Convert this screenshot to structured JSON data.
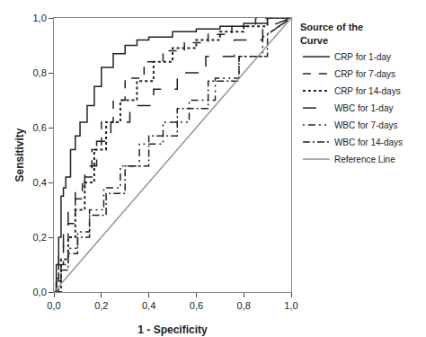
{
  "chart_data": {
    "type": "line",
    "xlabel": "1 - Specificity",
    "ylabel": "Sensitivity",
    "xlim": [
      0,
      1
    ],
    "ylim": [
      0,
      1
    ],
    "xticks": [
      {
        "value": 0.0,
        "label": "0,0"
      },
      {
        "value": 0.2,
        "label": "0,2"
      },
      {
        "value": 0.4,
        "label": "0,4"
      },
      {
        "value": 0.6,
        "label": "0,6"
      },
      {
        "value": 0.8,
        "label": "0,8"
      },
      {
        "value": 1.0,
        "label": "1,0"
      }
    ],
    "yticks": [
      {
        "value": 0.0,
        "label": "0,0"
      },
      {
        "value": 0.2,
        "label": "0,2"
      },
      {
        "value": 0.4,
        "label": "0,4"
      },
      {
        "value": 0.6,
        "label": "0,6"
      },
      {
        "value": 0.8,
        "label": "0,8"
      },
      {
        "value": 1.0,
        "label": "1,0"
      }
    ],
    "grid": false,
    "legend": "right",
    "legend_title": "Source of the\nCurve",
    "series": [
      {
        "name": "CRP for 1-day",
        "color": "#222222",
        "line_style": "solid",
        "x": [
          0,
          0.01,
          0.01,
          0.02,
          0.02,
          0.03,
          0.03,
          0.04,
          0.04,
          0.05,
          0.05,
          0.07,
          0.07,
          0.09,
          0.09,
          0.11,
          0.11,
          0.14,
          0.14,
          0.17,
          0.17,
          0.2,
          0.2,
          0.25,
          0.25,
          0.3,
          0.3,
          0.35,
          0.35,
          0.4,
          0.4,
          0.5,
          0.5,
          0.6,
          0.6,
          0.7,
          0.7,
          0.8,
          0.8,
          0.9,
          0.9,
          1.0
        ],
        "values": [
          0,
          0,
          0.1,
          0.1,
          0.2,
          0.2,
          0.35,
          0.35,
          0.38,
          0.38,
          0.42,
          0.42,
          0.52,
          0.52,
          0.57,
          0.57,
          0.62,
          0.62,
          0.68,
          0.68,
          0.75,
          0.75,
          0.82,
          0.82,
          0.87,
          0.87,
          0.9,
          0.9,
          0.92,
          0.92,
          0.93,
          0.93,
          0.95,
          0.95,
          0.96,
          0.96,
          0.97,
          0.97,
          0.98,
          0.98,
          1.0,
          1.0
        ]
      },
      {
        "name": "CRP for 7-days",
        "color": "#222222",
        "line_style": "dashed",
        "x": [
          0,
          0.02,
          0.02,
          0.04,
          0.04,
          0.06,
          0.06,
          0.09,
          0.09,
          0.12,
          0.12,
          0.16,
          0.16,
          0.2,
          0.2,
          0.25,
          0.25,
          0.3,
          0.3,
          0.38,
          0.38,
          0.46,
          0.46,
          0.55,
          0.55,
          0.65,
          0.65,
          0.75,
          0.75,
          0.85,
          0.85,
          1.0
        ],
        "values": [
          0,
          0,
          0.1,
          0.1,
          0.17,
          0.17,
          0.25,
          0.25,
          0.34,
          0.34,
          0.42,
          0.42,
          0.52,
          0.52,
          0.62,
          0.62,
          0.7,
          0.7,
          0.78,
          0.78,
          0.84,
          0.84,
          0.88,
          0.88,
          0.91,
          0.91,
          0.94,
          0.94,
          0.97,
          0.97,
          1.0,
          1.0
        ]
      },
      {
        "name": "CRP for 14-days",
        "color": "#222222",
        "line_style": "dotted",
        "x": [
          0,
          0.03,
          0.03,
          0.06,
          0.06,
          0.09,
          0.09,
          0.13,
          0.13,
          0.17,
          0.17,
          0.22,
          0.22,
          0.28,
          0.28,
          0.35,
          0.35,
          0.42,
          0.42,
          0.5,
          0.5,
          0.6,
          0.6,
          0.7,
          0.7,
          0.8,
          0.8,
          0.9,
          0.9,
          1.0
        ],
        "values": [
          0,
          0,
          0.12,
          0.12,
          0.2,
          0.2,
          0.3,
          0.3,
          0.4,
          0.4,
          0.52,
          0.52,
          0.62,
          0.62,
          0.7,
          0.7,
          0.77,
          0.77,
          0.84,
          0.84,
          0.89,
          0.89,
          0.92,
          0.92,
          0.95,
          0.95,
          0.97,
          0.97,
          1.0,
          1.0
        ]
      },
      {
        "name": "WBC for 1-day",
        "color": "#222222",
        "line_style": "longdash",
        "x": [
          0,
          0.01,
          0.01,
          0.02,
          0.02,
          0.04,
          0.04,
          0.06,
          0.06,
          0.09,
          0.09,
          0.13,
          0.13,
          0.18,
          0.18,
          0.24,
          0.24,
          0.32,
          0.32,
          0.42,
          0.42,
          0.52,
          0.52,
          0.64,
          0.64,
          0.76,
          0.76,
          0.88,
          0.88,
          1.0
        ],
        "values": [
          0,
          0,
          0.08,
          0.08,
          0.16,
          0.16,
          0.22,
          0.22,
          0.3,
          0.3,
          0.38,
          0.38,
          0.46,
          0.46,
          0.55,
          0.55,
          0.62,
          0.62,
          0.68,
          0.68,
          0.74,
          0.74,
          0.8,
          0.8,
          0.86,
          0.86,
          0.92,
          0.92,
          0.96,
          1.0
        ]
      },
      {
        "name": "WBC for 7-days",
        "color": "#222222",
        "line_style": "dashdotdot",
        "x": [
          0,
          0.01,
          0.01,
          0.03,
          0.03,
          0.06,
          0.06,
          0.1,
          0.1,
          0.15,
          0.15,
          0.21,
          0.21,
          0.28,
          0.28,
          0.36,
          0.36,
          0.46,
          0.46,
          0.57,
          0.57,
          0.68,
          0.68,
          0.78,
          0.78,
          0.88,
          0.88,
          1.0
        ],
        "values": [
          0,
          0,
          0.05,
          0.05,
          0.1,
          0.1,
          0.16,
          0.16,
          0.22,
          0.22,
          0.3,
          0.3,
          0.38,
          0.38,
          0.46,
          0.46,
          0.54,
          0.54,
          0.62,
          0.62,
          0.7,
          0.7,
          0.78,
          0.78,
          0.86,
          0.86,
          0.93,
          1.0
        ]
      },
      {
        "name": "WBC for 14-days",
        "color": "#222222",
        "line_style": "dashdot",
        "x": [
          0,
          0.01,
          0.01,
          0.03,
          0.03,
          0.06,
          0.06,
          0.1,
          0.1,
          0.15,
          0.15,
          0.22,
          0.22,
          0.3,
          0.3,
          0.4,
          0.4,
          0.52,
          0.52,
          0.65,
          0.65,
          0.78,
          0.78,
          0.9,
          0.9,
          1.0
        ],
        "values": [
          0,
          0,
          0.04,
          0.04,
          0.08,
          0.08,
          0.14,
          0.14,
          0.2,
          0.2,
          0.28,
          0.28,
          0.36,
          0.36,
          0.46,
          0.46,
          0.57,
          0.57,
          0.67,
          0.67,
          0.77,
          0.77,
          0.86,
          0.86,
          0.94,
          1.0
        ]
      },
      {
        "name": "Reference Line",
        "color": "#999999",
        "line_style": "solid",
        "x": [
          0,
          1
        ],
        "values": [
          0,
          1
        ]
      }
    ]
  }
}
